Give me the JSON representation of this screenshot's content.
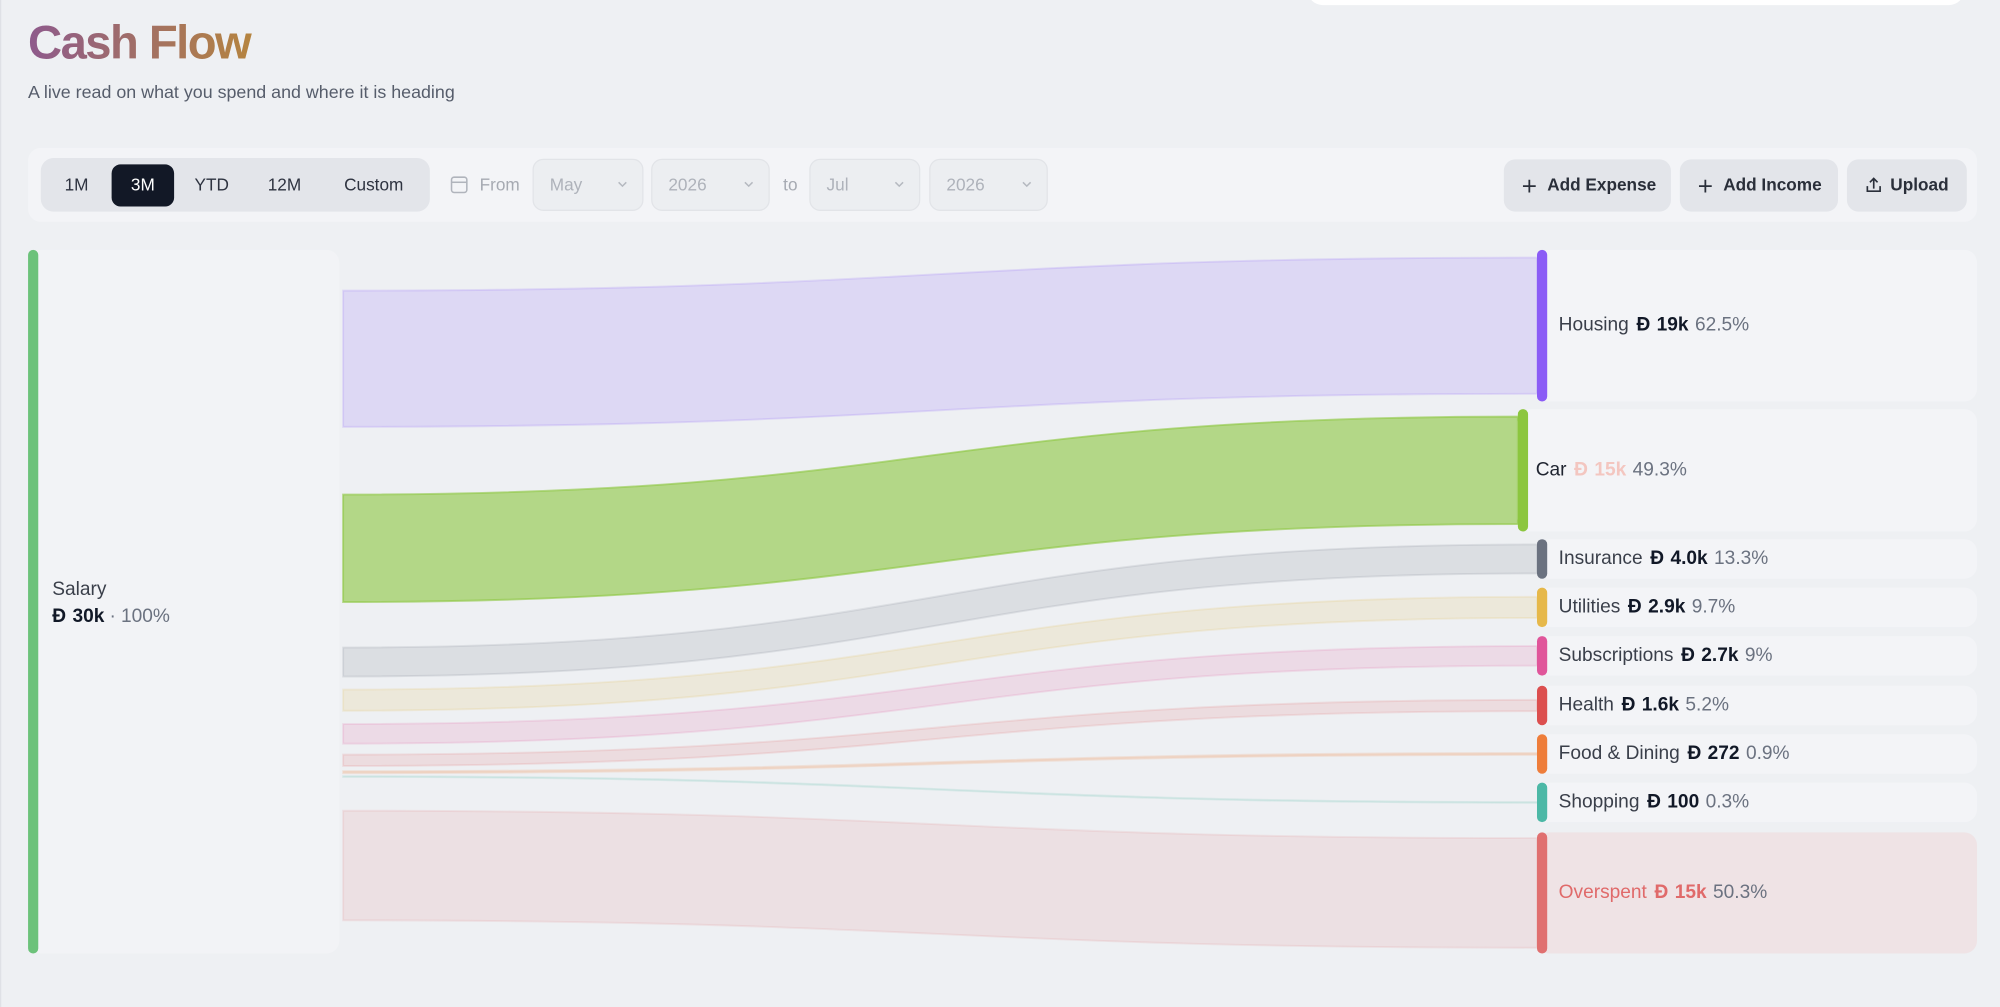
{
  "header": {
    "title": "Cash Flow",
    "subtitle": "A live read on what you spend and where it is heading"
  },
  "toolbar": {
    "ranges": [
      "1M",
      "3M",
      "YTD",
      "12M",
      "Custom"
    ],
    "selected_range": "3M",
    "from_label": "From",
    "from_month": "May",
    "from_year": "2026",
    "to_label": "to",
    "to_month": "Jul",
    "to_year": "2026",
    "actions": [
      "Add Expense",
      "Add Income",
      "Upload"
    ]
  },
  "sankey": {
    "currency": "Ð",
    "source": {
      "name": "Salary",
      "amount": "30k",
      "percent": {
        "value": 100,
        "label": "100%"
      },
      "color": "#6cc27a"
    },
    "targets": [
      {
        "name": "Housing",
        "amount": "19k",
        "percent": {
          "value": 62.5,
          "label": "62.5%"
        },
        "color": "#8b5cf6"
      },
      {
        "name": "Car",
        "amount": "15k",
        "percent": {
          "value": 49.3,
          "label": "49.3%"
        },
        "color": "#8cc63f"
      },
      {
        "name": "Insurance",
        "amount": "4.0k",
        "percent": {
          "value": 13.3,
          "label": "13.3%"
        },
        "color": "#6b7280"
      },
      {
        "name": "Utilities",
        "amount": "2.9k",
        "percent": {
          "value": 9.7,
          "label": "9.7%"
        },
        "color": "#e6b84a"
      },
      {
        "name": "Subscriptions",
        "amount": "2.7k",
        "percent": {
          "value": 9,
          "label": "9%"
        },
        "color": "#e0559a"
      },
      {
        "name": "Health",
        "amount": "1.6k",
        "percent": {
          "value": 5.2,
          "label": "5.2%"
        },
        "color": "#dc4f4f"
      },
      {
        "name": "Food & Dining",
        "amount": "272",
        "percent": {
          "value": 0.9,
          "label": "0.9%"
        },
        "color": "#ee7d3a"
      },
      {
        "name": "Shopping",
        "amount": "100",
        "percent": {
          "value": 0.3,
          "label": "0.3%"
        },
        "color": "#4cb8a6"
      },
      {
        "name": "Overspent",
        "amount": "15k",
        "percent": {
          "value": 50.3,
          "label": "50.3%"
        },
        "color": "#e07070"
      }
    ]
  }
}
